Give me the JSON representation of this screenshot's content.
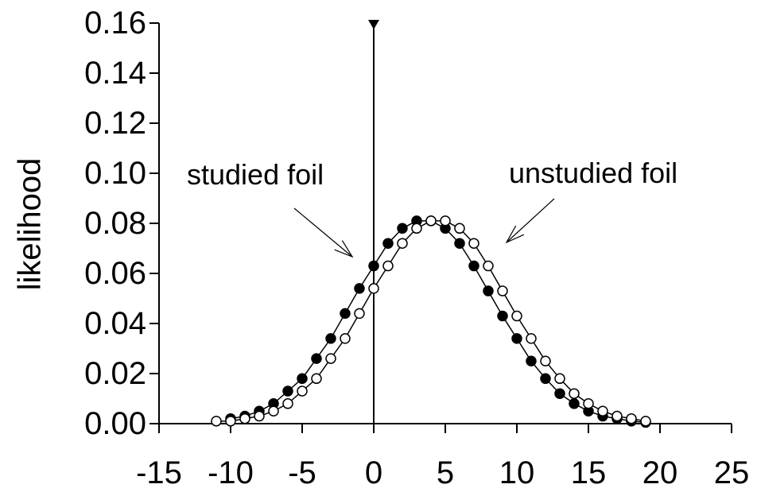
{
  "chart_data": {
    "type": "scatter",
    "title": "",
    "xlabel": "",
    "ylabel": "likelihood",
    "xlim": [
      -15,
      25
    ],
    "ylim": [
      0,
      0.16
    ],
    "x_ticks": [
      "-15",
      "-10",
      "-5",
      "0",
      "5",
      "10",
      "15",
      "20",
      "25"
    ],
    "y_ticks": [
      "0.00",
      "0.02",
      "0.04",
      "0.06",
      "0.08",
      "0.10",
      "0.12",
      "0.14",
      "0.16"
    ],
    "grid": false,
    "criterion_x": 0,
    "series": [
      {
        "name": "studied foil",
        "marker": "filled-circle",
        "x": [
          -10,
          -9,
          -8,
          -7,
          -6,
          -5,
          -4,
          -3,
          -2,
          -1,
          0,
          1,
          2,
          3,
          4,
          5,
          6,
          7,
          8,
          9,
          10,
          11,
          12,
          13,
          14,
          15,
          16,
          17,
          18,
          19
        ],
        "y": [
          0.002,
          0.003,
          0.005,
          0.008,
          0.013,
          0.018,
          0.026,
          0.034,
          0.044,
          0.054,
          0.063,
          0.072,
          0.078,
          0.081,
          0.081,
          0.078,
          0.072,
          0.063,
          0.053,
          0.043,
          0.034,
          0.025,
          0.018,
          0.012,
          0.008,
          0.005,
          0.003,
          0.002,
          0.001,
          0.0005
        ]
      },
      {
        "name": "unstudied foil",
        "marker": "open-circle",
        "x": [
          -11,
          -10,
          -9,
          -8,
          -7,
          -6,
          -5,
          -4,
          -3,
          -2,
          -1,
          0,
          1,
          2,
          3,
          4,
          5,
          6,
          7,
          8,
          9,
          10,
          11,
          12,
          13,
          14,
          15,
          16,
          17,
          18,
          19
        ],
        "y": [
          0.001,
          0.001,
          0.002,
          0.003,
          0.005,
          0.008,
          0.013,
          0.018,
          0.026,
          0.034,
          0.044,
          0.054,
          0.063,
          0.072,
          0.078,
          0.081,
          0.081,
          0.078,
          0.072,
          0.063,
          0.053,
          0.043,
          0.034,
          0.025,
          0.018,
          0.012,
          0.008,
          0.005,
          0.003,
          0.002,
          0.001
        ]
      }
    ],
    "annotations": [
      {
        "text": "studied foil",
        "points_to": "studied foil"
      },
      {
        "text": "unstudied foil",
        "points_to": "unstudied foil"
      }
    ]
  }
}
